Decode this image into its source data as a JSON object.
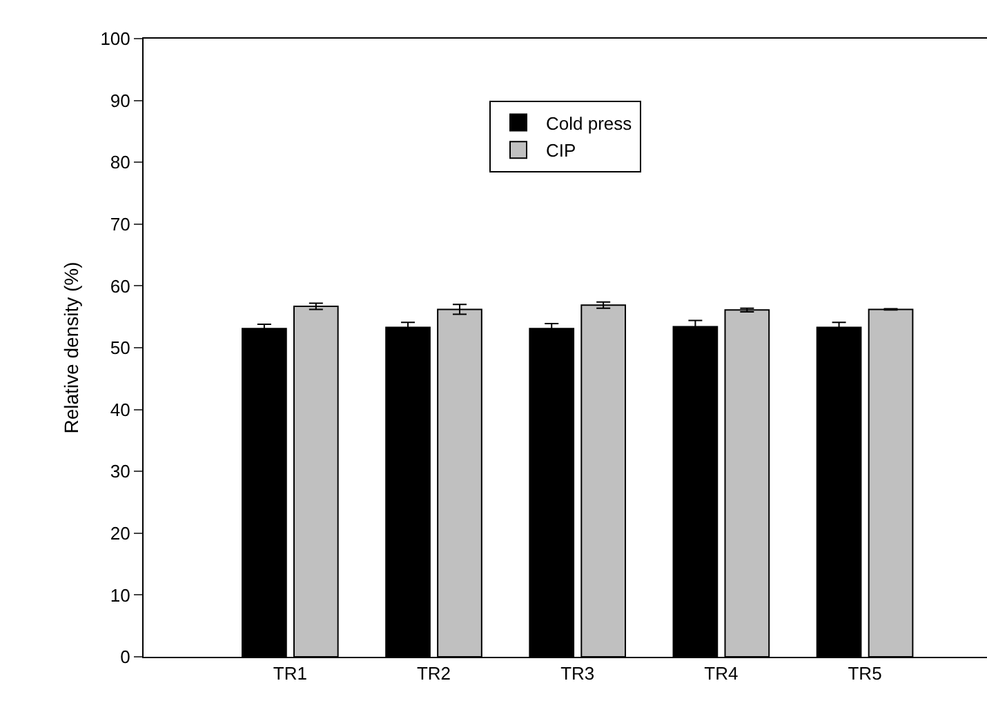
{
  "chart_data": {
    "type": "bar",
    "ylabel": "Relative density (%)",
    "categories": [
      "TR1",
      "TR2",
      "TR3",
      "TR4",
      "TR5"
    ],
    "series": [
      {
        "name": "Cold press",
        "color": "#000000",
        "values": [
          53.1,
          53.3,
          53.1,
          53.4,
          53.3
        ],
        "errors": [
          0.7,
          0.8,
          0.8,
          1.0,
          0.8
        ]
      },
      {
        "name": "CIP",
        "color": "#c0c0c0",
        "values": [
          56.7,
          56.2,
          56.9,
          56.1,
          56.2
        ],
        "errors": [
          0.5,
          0.8,
          0.5,
          0.3,
          0.1
        ]
      }
    ],
    "ylim": [
      0,
      100
    ],
    "yticks": [
      0,
      10,
      20,
      30,
      40,
      50,
      60,
      70,
      80,
      90,
      100
    ],
    "grid": false,
    "legend": "top"
  }
}
